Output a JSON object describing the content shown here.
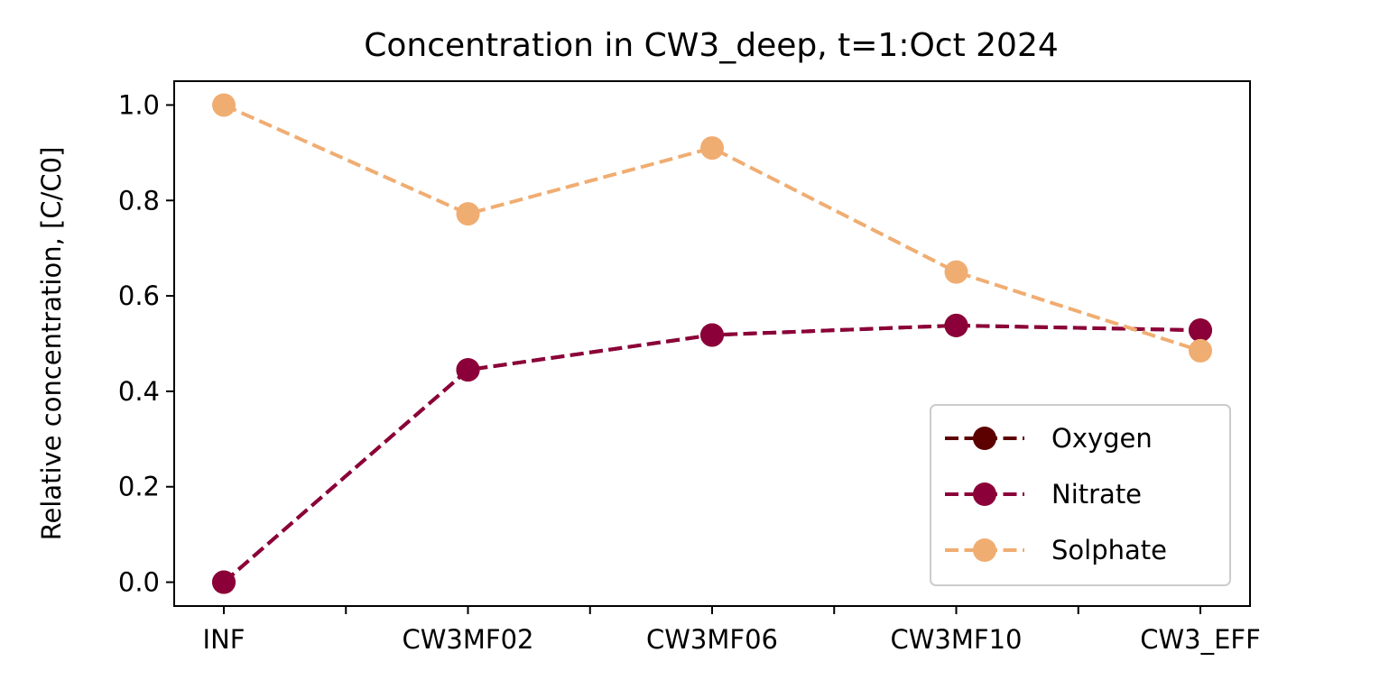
{
  "chart_data": {
    "type": "line",
    "title": "Concentration in CW3_deep, t=1:Oct 2024",
    "xlabel": "",
    "ylabel": "Relative concentration, [C/C0]",
    "categories": [
      "INF",
      "CW3MF02",
      "CW3MF06",
      "CW3MF10",
      "CW3_EFF"
    ],
    "ylim": [
      -0.05,
      1.05
    ],
    "yticks": [
      "0.0",
      "0.2",
      "0.4",
      "0.6",
      "0.8",
      "1.0"
    ],
    "grid": false,
    "legend_position": "lower-right",
    "series": [
      {
        "name": "Oxygen",
        "color": "#5c0000",
        "values": [
          0.0,
          0.445,
          0.518,
          0.538,
          0.528
        ]
      },
      {
        "name": "Nitrate",
        "color": "#8c0039",
        "values": [
          0.0,
          0.445,
          0.518,
          0.538,
          0.528
        ]
      },
      {
        "name": "Solphate",
        "color": "#f0ad72",
        "values": [
          1.0,
          0.772,
          0.91,
          0.65,
          0.485
        ]
      }
    ]
  }
}
